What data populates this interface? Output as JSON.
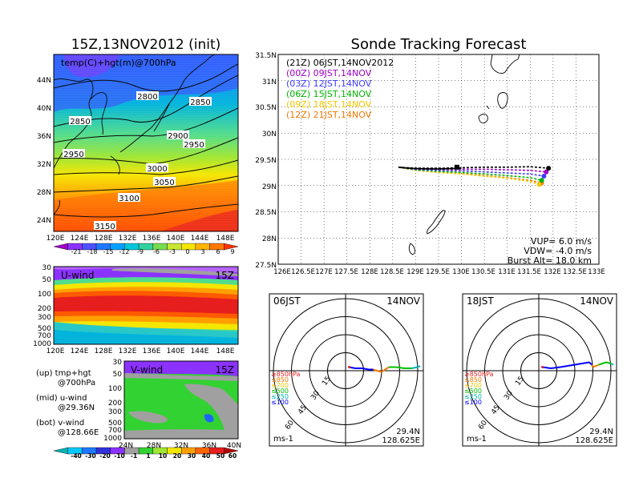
{
  "title_left": "15Z,13NOV2012 (init)",
  "title_right": "Sonde Tracking Forecast",
  "map_panel": {
    "label": "temp(C)+hgt(m)@700hPa",
    "lat_labels": [
      "44N",
      "40N",
      "36N",
      "32N",
      "28N",
      "24N"
    ],
    "lon_labels": [
      "120E",
      "124E",
      "128E",
      "132E",
      "136E",
      "140E",
      "144E",
      "148E"
    ],
    "contour_labels": [
      "2800",
      "2850",
      "2850",
      "2900",
      "2950",
      "2950",
      "3000",
      "3050",
      "3100",
      "3150"
    ],
    "colorbar_labels": [
      "-21",
      "-18",
      "-15",
      "-12",
      "-9",
      "-6",
      "-3",
      "0",
      "3",
      "6",
      "9"
    ]
  },
  "uwind_panel": {
    "label": "U-wind",
    "time": "15Z",
    "p_labels": [
      "30",
      "50",
      "100",
      "200",
      "300",
      "500",
      "700",
      "1000"
    ],
    "lon_labels": [
      "120E",
      "124E",
      "128E",
      "132E",
      "136E",
      "140E",
      "144E",
      "148E"
    ]
  },
  "vwind_panel": {
    "label": "V-wind",
    "time": "15Z",
    "p_labels": [
      "30",
      "50",
      "100",
      "200",
      "300",
      "500",
      "700",
      "1000"
    ],
    "lat_labels": [
      "24N",
      "28N",
      "32N",
      "36N",
      "40N"
    ],
    "colorbar_labels": [
      "-40",
      "-30",
      "-20",
      "-10",
      "-1",
      "1",
      "10",
      "20",
      "30",
      "40",
      "50",
      "60"
    ]
  },
  "legend_notes": [
    {
      "line1": "(up) tmp+hgt",
      "line2": "@700hPa"
    },
    {
      "line1": "(mid) u-wind",
      "line2": "@29.36N"
    },
    {
      "line1": "(bot) v-wind",
      "line2": "@128.66E"
    }
  ],
  "track_panel": {
    "lat_labels": [
      "31.5N",
      "31N",
      "30.5N",
      "30N",
      "29.5N",
      "29N",
      "28.5N",
      "28N",
      "27.5N"
    ],
    "lon_labels": [
      "126E",
      "126.5E",
      "127E",
      "127.5E",
      "128E",
      "128.5E",
      "129E",
      "129.5E",
      "130E",
      "130.5E",
      "131E",
      "131.5E",
      "132E",
      "132.5E",
      "133E"
    ],
    "legend": [
      {
        "text": "(21Z)  06JST,14NOV2012",
        "color": "#000000"
      },
      {
        "text": "(00Z)  09JST,14NOV",
        "color": "#a000c8"
      },
      {
        "text": "(03Z)  12JST,14NOV",
        "color": "#3c3cff"
      },
      {
        "text": "(06Z)  15JST,14NOV",
        "color": "#00b400"
      },
      {
        "text": "(09Z)  18JST,14NOV",
        "color": "#f0c800"
      },
      {
        "text": "(12Z)  21JST,14NOV",
        "color": "#f07800"
      }
    ],
    "params": [
      "VUP=  6.0  m/s",
      "VDW= -4.0  m/s",
      "Burst Alt=  18.0  km"
    ]
  },
  "hodo_left": {
    "time": "06JST",
    "date": "14NOV",
    "ring_labels": [
      "15",
      "30",
      "45",
      "60"
    ],
    "pressure_labels": [
      "≥850hPa",
      "≤850",
      "≤700",
      "≤500",
      "≤250",
      "≤100"
    ],
    "units": "ms-1",
    "lat": "29.4N",
    "lon": "128.625E"
  },
  "hodo_right": {
    "time": "18JST",
    "date": "14NOV",
    "ring_labels": [
      "15",
      "30",
      "45",
      "60"
    ],
    "pressure_labels": [
      "≥850hPa",
      "≤850",
      "≤700",
      "≤500",
      "≤250",
      "≤100"
    ],
    "units": "ms-1",
    "lat": "29.4N",
    "lon": "128.625E"
  },
  "chart_data": [
    {
      "type": "heatmap",
      "title": "15Z,13NOV2012 (init)",
      "annotation": "temp(C)+hgt(m)@700hPa",
      "x_ticks": [
        "120E",
        "124E",
        "128E",
        "132E",
        "136E",
        "140E",
        "144E",
        "148E"
      ],
      "y_ticks": [
        "24N",
        "28N",
        "32N",
        "36N",
        "40N",
        "44N"
      ],
      "xlim": [
        120,
        150
      ],
      "ylim": [
        22,
        47
      ],
      "colorbar": [
        -21,
        -18,
        -15,
        -12,
        -9,
        -6,
        -3,
        0,
        3,
        6,
        9
      ],
      "contour_levels_m": [
        2800,
        2850,
        2900,
        2950,
        3000,
        3050,
        3100,
        3150
      ]
    },
    {
      "type": "heatmap",
      "annotation": "U-wind 15Z",
      "x_ticks": [
        "120E",
        "124E",
        "128E",
        "132E",
        "136E",
        "140E",
        "144E",
        "148E"
      ],
      "y_ticks_hPa": [
        30,
        50,
        100,
        200,
        300,
        500,
        700,
        1000
      ],
      "xlim": [
        120,
        150
      ]
    },
    {
      "type": "heatmap",
      "annotation": "V-wind 15Z",
      "x_ticks": [
        "24N",
        "28N",
        "32N",
        "36N",
        "40N"
      ],
      "y_ticks_hPa": [
        30,
        50,
        100,
        200,
        300,
        500,
        700,
        1000
      ],
      "xlim": [
        24,
        40
      ],
      "colorbar": [
        -40,
        -30,
        -20,
        -10,
        -1,
        1,
        10,
        20,
        30,
        40,
        50,
        60
      ]
    },
    {
      "type": "line",
      "title": "Sonde Tracking Forecast",
      "xlim": [
        126,
        133
      ],
      "ylim": [
        27.5,
        31.5
      ],
      "launch": {
        "lon": 128.625,
        "lat": 29.35
      },
      "series": [
        {
          "name": "(21Z) 06JST,14NOV2012",
          "color": "#000000",
          "x": [
            128.625,
            129.0,
            129.5,
            130.0,
            130.5,
            131.0,
            131.5,
            131.9
          ],
          "y": [
            29.35,
            29.33,
            29.33,
            29.34,
            29.35,
            29.35,
            29.36,
            29.33
          ],
          "end": {
            "lon": 131.9,
            "lat": 29.33
          }
        },
        {
          "name": "(00Z) 09JST,14NOV",
          "color": "#a000c8",
          "x": [
            128.625,
            129.0,
            129.5,
            130.0,
            130.5,
            131.0,
            131.5,
            131.85
          ],
          "y": [
            29.35,
            29.32,
            29.31,
            29.31,
            29.31,
            29.3,
            29.29,
            29.26
          ],
          "end": {
            "lon": 131.85,
            "lat": 29.26
          }
        },
        {
          "name": "(03Z) 12JST,14NOV",
          "color": "#3c3cff",
          "x": [
            128.625,
            129.0,
            129.5,
            130.0,
            130.5,
            131.0,
            131.5,
            131.8
          ],
          "y": [
            29.35,
            29.31,
            29.29,
            29.28,
            29.26,
            29.24,
            29.22,
            29.18
          ],
          "end": {
            "lon": 131.8,
            "lat": 29.18
          }
        },
        {
          "name": "(06Z) 15JST,14NOV",
          "color": "#00b400",
          "x": [
            128.625,
            129.0,
            129.5,
            130.0,
            130.5,
            131.0,
            131.5,
            131.75
          ],
          "y": [
            29.35,
            29.3,
            29.27,
            29.25,
            29.22,
            29.19,
            29.15,
            29.1
          ],
          "end": {
            "lon": 131.75,
            "lat": 29.1
          }
        },
        {
          "name": "(09Z) 18JST,14NOV",
          "color": "#f0c800",
          "x": [
            128.625,
            129.0,
            129.5,
            130.0,
            130.5,
            131.0,
            131.5,
            131.7
          ],
          "y": [
            29.35,
            29.29,
            29.25,
            29.22,
            29.18,
            29.14,
            29.08,
            29.02
          ],
          "end": {
            "lon": 131.7,
            "lat": 29.02
          }
        },
        {
          "name": "(12Z) 21JST,14NOV",
          "color": "#f07800",
          "x": [
            128.625,
            129.0,
            129.5,
            130.0,
            130.5,
            131.0,
            131.5,
            131.75
          ],
          "y": [
            29.35,
            29.3,
            29.26,
            29.23,
            29.19,
            29.15,
            29.1,
            29.05
          ],
          "end": {
            "lon": 131.75,
            "lat": 29.05
          }
        }
      ],
      "params": {
        "VUP_m_s": 6.0,
        "VDW_m_s": -4.0,
        "Burst_Alt_km": 18.0
      }
    },
    {
      "type": "line",
      "annotation": "hodograph 06JST 14NOV",
      "rings_ms": [
        15,
        30,
        45,
        60
      ],
      "u": [
        3,
        8,
        14,
        19,
        23,
        26,
        30,
        33,
        36,
        42,
        49,
        55,
        60,
        62
      ],
      "v": [
        3,
        2,
        2,
        1,
        1,
        0,
        -1,
        1,
        3,
        3,
        2,
        2,
        3,
        4
      ],
      "colors": [
        "#0000ff",
        "#0000ff",
        "#0000ff",
        "#0000ff",
        "#f07800",
        "#f07800",
        "#f07800",
        "#f07800",
        "#00c000",
        "#00c000",
        "#00c000",
        "#00b4b4",
        "#00b4b4",
        "#00b4b4"
      ]
    },
    {
      "type": "line",
      "annotation": "hodograph 18JST 14NOV",
      "rings_ms": [
        15,
        30,
        45,
        60
      ],
      "u": [
        3,
        10,
        18,
        24,
        30,
        36,
        42,
        44,
        45,
        50,
        56,
        60,
        62
      ],
      "v": [
        3,
        2,
        3,
        4,
        5,
        6,
        7,
        5,
        3,
        5,
        7,
        6,
        5
      ],
      "colors": [
        "#0000ff",
        "#0000ff",
        "#0000ff",
        "#0000ff",
        "#0000ff",
        "#0000ff",
        "#0000ff",
        "#f07800",
        "#f07800",
        "#00c000",
        "#00c000",
        "#00b4b4",
        "#00b4b4"
      ]
    }
  ]
}
